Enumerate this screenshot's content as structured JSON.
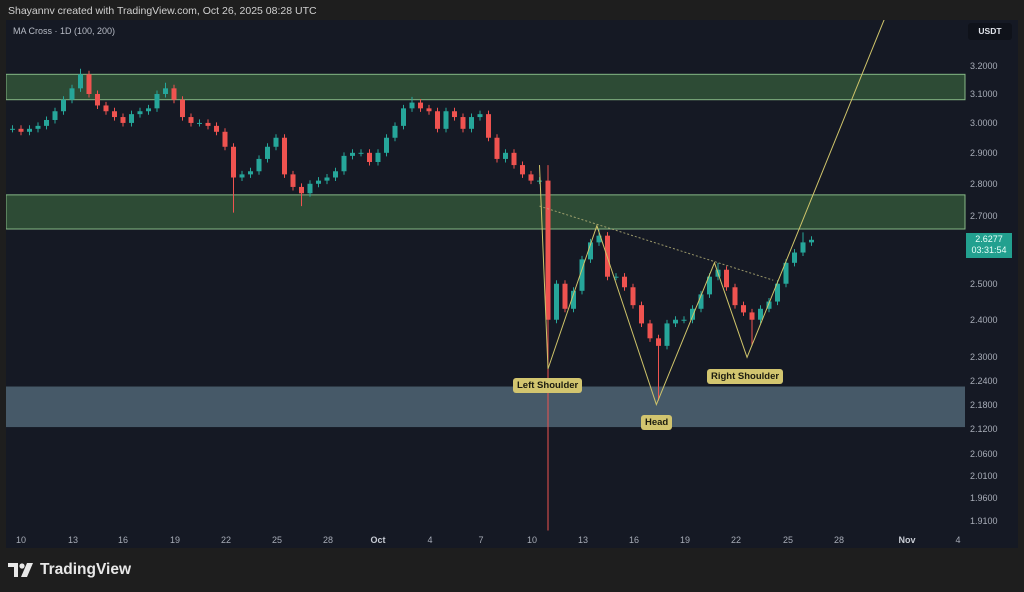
{
  "header": {
    "credit": "Shayannv created with TradingView.com, Oct 26, 2025 08:28 UTC",
    "indicator": "MA Cross · 1D (100, 200)",
    "currency": "USDT"
  },
  "price_tag": {
    "price": "2.6277",
    "countdown": "03:31:54",
    "color": "#22a08f"
  },
  "footer": {
    "brand": "TradingView"
  },
  "colors": {
    "up": "#26a69a",
    "down": "#ef5350",
    "supply_zone": "#4c8a4c",
    "demand_zone": "#6f8ea0",
    "pattern_line": "#cfc46a",
    "label_bg": "#d2c56f"
  },
  "chart_data": {
    "type": "candlestick",
    "title": "",
    "y_scale": "log",
    "ylim": [
      1.89,
      3.47
    ],
    "y_ticks": [
      "3.2000",
      "3.1000",
      "3.0000",
      "2.9000",
      "2.8000",
      "2.7000",
      "2.5000",
      "2.4000",
      "2.3000",
      "2.2400",
      "2.1800",
      "2.1200",
      "2.0600",
      "2.0100",
      "1.9600",
      "1.9100"
    ],
    "x_ticks": [
      "10",
      "13",
      "16",
      "19",
      "22",
      "25",
      "28",
      "Oct",
      "4",
      "7",
      "10",
      "13",
      "16",
      "19",
      "22",
      "25",
      "28",
      "Nov",
      "4"
    ],
    "grid": false,
    "candle_start": "2025-09-09 12:00",
    "candle_interval": "12h",
    "closes": [
      2.98,
      2.97,
      2.98,
      2.99,
      3.01,
      3.04,
      3.08,
      3.12,
      3.17,
      3.1,
      3.06,
      3.04,
      3.02,
      3.0,
      3.03,
      3.04,
      3.05,
      3.1,
      3.12,
      3.08,
      3.02,
      3.0,
      3.0,
      2.99,
      2.97,
      2.92,
      2.82,
      2.83,
      2.84,
      2.88,
      2.92,
      2.95,
      2.83,
      2.79,
      2.77,
      2.8,
      2.81,
      2.82,
      2.84,
      2.89,
      2.9,
      2.9,
      2.87,
      2.9,
      2.95,
      2.99,
      3.05,
      3.07,
      3.05,
      3.04,
      2.98,
      3.04,
      3.02,
      2.98,
      3.02,
      3.03,
      2.95,
      2.88,
      2.9,
      2.86,
      2.83,
      2.81,
      2.81,
      2.4,
      2.5,
      2.43,
      2.48,
      2.57,
      2.62,
      2.64,
      2.52,
      2.52,
      2.49,
      2.44,
      2.39,
      2.35,
      2.33,
      2.39,
      2.4,
      2.4,
      2.43,
      2.47,
      2.52,
      2.54,
      2.49,
      2.44,
      2.42,
      2.4,
      2.43,
      2.45,
      2.5,
      2.56,
      2.59,
      2.62,
      2.6277
    ],
    "wick_extremes": [
      {
        "index": 8,
        "high": 3.19
      },
      {
        "index": 18,
        "high": 3.14
      },
      {
        "index": 26,
        "low": 2.71
      },
      {
        "index": 34,
        "low": 2.73
      },
      {
        "index": 47,
        "high": 3.09
      },
      {
        "index": 63,
        "high": 2.86,
        "low": 1.89
      },
      {
        "index": 69,
        "high": 2.66
      },
      {
        "index": 76,
        "low": 2.19
      },
      {
        "index": 83,
        "high": 2.56
      },
      {
        "index": 87,
        "low": 2.33
      },
      {
        "index": 93,
        "high": 2.65
      }
    ],
    "zones": [
      {
        "kind": "resistance",
        "top": 3.17,
        "bottom": 3.08
      },
      {
        "kind": "resistance",
        "top": 2.765,
        "bottom": 2.66
      },
      {
        "kind": "support",
        "top": 2.225,
        "bottom": 2.125
      }
    ],
    "neckline": [
      {
        "date": "2025-10-10 12:00",
        "price": 2.73
      },
      {
        "date": "2025-10-24 06:00",
        "price": 2.51
      }
    ],
    "pattern": {
      "points": [
        {
          "date": "2025-10-10 12:00",
          "price": 2.86
        },
        {
          "date": "2025-10-11 00:00",
          "price": 2.27
        },
        {
          "date": "2025-10-13 21:00",
          "price": 2.67
        },
        {
          "date": "2025-10-17 09:00",
          "price": 2.18
        },
        {
          "date": "2025-10-20 19:00",
          "price": 2.56
        },
        {
          "date": "2025-10-22 17:00",
          "price": 2.3
        },
        {
          "date": "2025-10-31 09:00",
          "price": 3.47
        }
      ],
      "labels": [
        "Left Shoulder",
        "Head",
        "Right Shoulder"
      ]
    }
  }
}
